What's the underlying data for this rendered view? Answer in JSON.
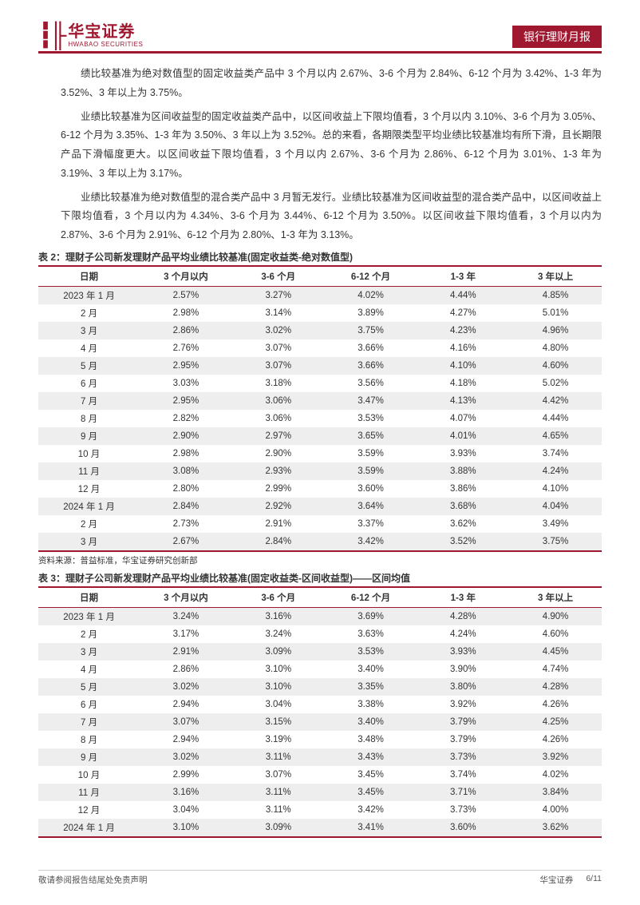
{
  "header": {
    "logo_cn": "华宝证券",
    "logo_en": "HWABAO SECURITIES",
    "badge": "银行理财月报"
  },
  "paragraphs": {
    "p1": "绩比较基准为绝对数值型的固定收益类产品中 3 个月以内 2.67%、3-6 个月为 2.84%、6-12 个月为 3.42%、1-3 年为 3.52%、3 年以上为 3.75%。",
    "p2": "业绩比较基准为区间收益型的固定收益类产品中，以区间收益上下限均值看，3 个月以内 3.10%、3-6 个月为 3.05%、6-12 个月为 3.35%、1-3 年为 3.50%、3 年以上为 3.52%。总的来看，各期限类型平均业绩比较基准均有所下滑，且长期限产品下滑幅度更大。以区间收益下限均值看，3 个月以内 2.67%、3-6 个月为 2.86%、6-12 个月为 3.01%、1-3 年为 3.19%、3 年以上为 3.17%。",
    "p3": "业绩比较基准为绝对数值型的混合类产品中 3 月暂无发行。业绩比较基准为区间收益型的混合类产品中，以区间收益上下限均值看，3 个月以内为 4.34%、3-6 个月为 3.44%、6-12 个月为 3.50%。以区间收益下限均值看，3 个月以内为 2.87%、3-6 个月为 2.91%、6-12 个月为 2.80%、1-3 年为 3.13%。"
  },
  "table2": {
    "title": "表 2：理财子公司新发理财产品平均业绩比较基准(固定收益类-绝对数值型)",
    "columns": [
      "日期",
      "3 个月以内",
      "3-6 个月",
      "6-12 个月",
      "1-3 年",
      "3 年以上"
    ],
    "rows": [
      [
        "2023 年 1 月",
        "2.57%",
        "3.27%",
        "4.02%",
        "4.44%",
        "4.85%"
      ],
      [
        "2 月",
        "2.98%",
        "3.14%",
        "3.89%",
        "4.27%",
        "5.01%"
      ],
      [
        "3 月",
        "2.86%",
        "3.02%",
        "3.75%",
        "4.23%",
        "4.96%"
      ],
      [
        "4 月",
        "2.76%",
        "3.07%",
        "3.66%",
        "4.16%",
        "4.80%"
      ],
      [
        "5 月",
        "2.95%",
        "3.07%",
        "3.66%",
        "4.10%",
        "4.60%"
      ],
      [
        "6 月",
        "3.03%",
        "3.18%",
        "3.56%",
        "4.18%",
        "5.02%"
      ],
      [
        "7 月",
        "2.95%",
        "3.06%",
        "3.47%",
        "4.13%",
        "4.42%"
      ],
      [
        "8 月",
        "2.82%",
        "3.06%",
        "3.53%",
        "4.07%",
        "4.44%"
      ],
      [
        "9 月",
        "2.90%",
        "2.97%",
        "3.65%",
        "4.01%",
        "4.65%"
      ],
      [
        "10 月",
        "2.98%",
        "2.90%",
        "3.59%",
        "3.93%",
        "3.74%"
      ],
      [
        "11 月",
        "3.08%",
        "2.93%",
        "3.59%",
        "3.88%",
        "4.24%"
      ],
      [
        "12 月",
        "2.80%",
        "2.99%",
        "3.60%",
        "3.86%",
        "4.10%"
      ],
      [
        "2024 年 1 月",
        "2.84%",
        "2.92%",
        "3.64%",
        "3.68%",
        "4.04%"
      ],
      [
        "2 月",
        "2.73%",
        "2.91%",
        "3.37%",
        "3.62%",
        "3.49%"
      ],
      [
        "3 月",
        "2.67%",
        "2.84%",
        "3.42%",
        "3.52%",
        "3.75%"
      ]
    ],
    "source": "资料来源：普益标准，华宝证券研究创新部"
  },
  "table3": {
    "title": "表 3：理财子公司新发理财产品平均业绩比较基准(固定收益类-区间收益型)——区间均值",
    "columns": [
      "日期",
      "3 个月以内",
      "3-6 个月",
      "6-12 个月",
      "1-3 年",
      "3 年以上"
    ],
    "rows": [
      [
        "2023 年 1 月",
        "3.24%",
        "3.16%",
        "3.69%",
        "4.28%",
        "4.90%"
      ],
      [
        "2 月",
        "3.17%",
        "3.24%",
        "3.63%",
        "4.24%",
        "4.60%"
      ],
      [
        "3 月",
        "2.91%",
        "3.09%",
        "3.53%",
        "3.93%",
        "4.45%"
      ],
      [
        "4 月",
        "2.86%",
        "3.10%",
        "3.40%",
        "3.90%",
        "4.74%"
      ],
      [
        "5 月",
        "3.02%",
        "3.10%",
        "3.35%",
        "3.80%",
        "4.28%"
      ],
      [
        "6 月",
        "2.94%",
        "3.04%",
        "3.38%",
        "3.92%",
        "4.26%"
      ],
      [
        "7 月",
        "3.07%",
        "3.15%",
        "3.40%",
        "3.79%",
        "4.25%"
      ],
      [
        "8 月",
        "2.94%",
        "3.19%",
        "3.48%",
        "3.79%",
        "4.26%"
      ],
      [
        "9 月",
        "3.02%",
        "3.11%",
        "3.43%",
        "3.73%",
        "3.92%"
      ],
      [
        "10 月",
        "2.99%",
        "3.07%",
        "3.45%",
        "3.74%",
        "4.02%"
      ],
      [
        "11 月",
        "3.16%",
        "3.11%",
        "3.45%",
        "3.71%",
        "3.84%"
      ],
      [
        "12 月",
        "3.04%",
        "3.11%",
        "3.42%",
        "3.73%",
        "4.00%"
      ],
      [
        "2024 年 1 月",
        "3.10%",
        "3.09%",
        "3.41%",
        "3.60%",
        "3.62%"
      ]
    ]
  },
  "footer": {
    "left": "敬请参阅报告结尾处免责声明",
    "company": "华宝证券",
    "page": "6/11"
  },
  "style": {
    "brand_color": "#a01830",
    "row_odd_bg": "#eeeeee",
    "row_even_bg": "#ffffff",
    "text_color": "#333333",
    "body_fontsize": 12.5,
    "table_fontsize": 11.5,
    "col_widths_pct": [
      18,
      16.4,
      16.4,
      16.4,
      16.4,
      16.4
    ]
  }
}
